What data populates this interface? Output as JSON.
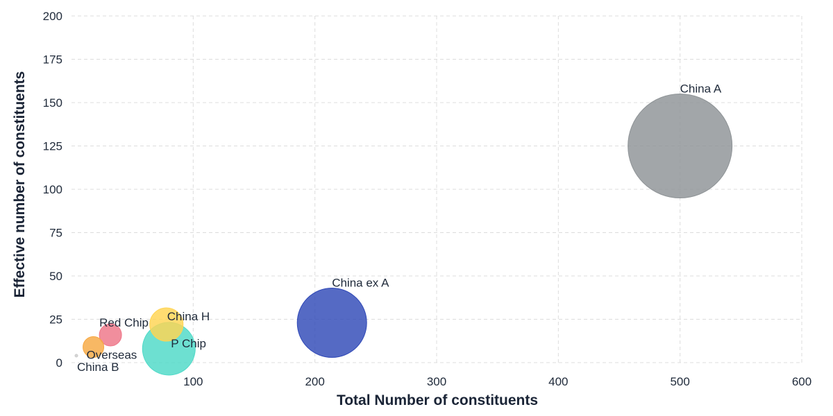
{
  "chart_data": {
    "type": "scatter",
    "subtype": "bubble",
    "xlabel": "Total Number of constituents",
    "ylabel": "Effective number of constituents",
    "xlim": [
      0,
      600
    ],
    "ylim": [
      0,
      200
    ],
    "xticks": [
      "100",
      "200",
      "300",
      "400",
      "500",
      "600"
    ],
    "yticks": [
      "0",
      "25",
      "50",
      "75",
      "100",
      "125",
      "150",
      "175",
      "200"
    ],
    "grid": true,
    "points": [
      {
        "label": "China A",
        "x": 500,
        "y": 125,
        "size": 75,
        "color": "#8e9396",
        "label_pos": "top"
      },
      {
        "label": "China ex A",
        "x": 214,
        "y": 23,
        "size": 50,
        "color": "#3049b7",
        "label_pos": "top"
      },
      {
        "label": "China H",
        "x": 78,
        "y": 22,
        "size": 24,
        "color": "#ffd452",
        "label_pos": "top-right"
      },
      {
        "label": "P Chip",
        "x": 80,
        "y": 8,
        "size": 38,
        "color": "#4dd9c7",
        "label_pos": "inside"
      },
      {
        "label": "Red Chip",
        "x": 32,
        "y": 16,
        "size": 16,
        "color": "#ee7587",
        "label_pos": "top"
      },
      {
        "label": "Overseas",
        "x": 18,
        "y": 9,
        "size": 15,
        "color": "#f7a842",
        "label_pos": "bottom-right"
      },
      {
        "label": "China B",
        "x": 4,
        "y": 4,
        "size": 2,
        "color": "#cccccc",
        "label_pos": "bottom-right"
      }
    ]
  }
}
